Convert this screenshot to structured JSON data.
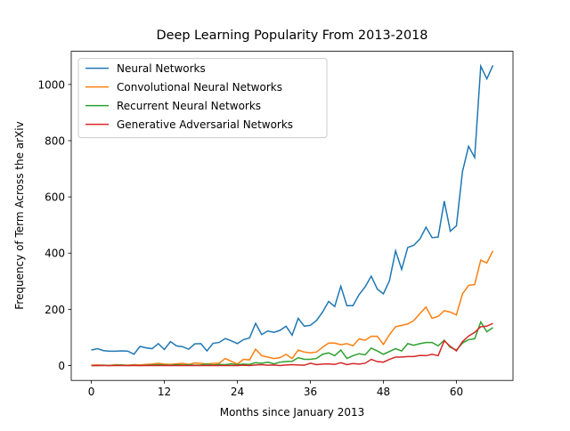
{
  "chart_data": {
    "type": "line",
    "title": "Deep Learning Popularity From 2013-2018",
    "xlabel": "Months since January 2013",
    "ylabel": "Frequency of Term Across the arXiv",
    "x": [
      0,
      1,
      2,
      3,
      4,
      5,
      6,
      7,
      8,
      9,
      10,
      11,
      12,
      13,
      14,
      15,
      16,
      17,
      18,
      19,
      20,
      21,
      22,
      23,
      24,
      25,
      26,
      27,
      28,
      29,
      30,
      31,
      32,
      33,
      34,
      35,
      36,
      37,
      38,
      39,
      40,
      41,
      42,
      43,
      44,
      45,
      46,
      47,
      48,
      49,
      50,
      51,
      52,
      53,
      54,
      55,
      56,
      57,
      58,
      59,
      60,
      61,
      62,
      63,
      64,
      65,
      66
    ],
    "series": [
      {
        "name": "Neural Networks",
        "color": "#1f77b4",
        "values": [
          55,
          60,
          53,
          51,
          51,
          52,
          51,
          40,
          68,
          63,
          60,
          78,
          57,
          85,
          70,
          67,
          58,
          77,
          78,
          52,
          79,
          82,
          96,
          88,
          78,
          92,
          98,
          150,
          110,
          123,
          118,
          125,
          140,
          108,
          168,
          140,
          143,
          160,
          190,
          228,
          210,
          282,
          213,
          213,
          252,
          280,
          318,
          272,
          255,
          302,
          408,
          342,
          420,
          428,
          450,
          492,
          455,
          457,
          585,
          478,
          497,
          690,
          780,
          740,
          1065,
          1020,
          1068
        ]
      },
      {
        "name": "Convolutional Neural Networks",
        "color": "#ff7f0e",
        "values": [
          1,
          2,
          1,
          0,
          3,
          2,
          1,
          3,
          2,
          4,
          5,
          8,
          5,
          4,
          6,
          8,
          4,
          9,
          8,
          5,
          8,
          8,
          25,
          15,
          5,
          22,
          20,
          58,
          35,
          30,
          25,
          28,
          40,
          25,
          55,
          48,
          45,
          48,
          65,
          80,
          80,
          74,
          78,
          70,
          95,
          90,
          104,
          104,
          75,
          110,
          138,
          143,
          148,
          160,
          185,
          208,
          168,
          175,
          195,
          190,
          180,
          255,
          285,
          288,
          375,
          365,
          408
        ]
      },
      {
        "name": "Recurrent Neural Networks",
        "color": "#2ca02c",
        "values": [
          0,
          0,
          1,
          0,
          1,
          2,
          0,
          1,
          0,
          1,
          2,
          3,
          2,
          1,
          3,
          2,
          3,
          1,
          2,
          5,
          2,
          4,
          3,
          6,
          3,
          5,
          4,
          10,
          8,
          12,
          6,
          12,
          14,
          15,
          28,
          22,
          22,
          25,
          40,
          45,
          35,
          55,
          25,
          35,
          42,
          38,
          62,
          52,
          40,
          50,
          60,
          52,
          78,
          72,
          78,
          82,
          82,
          70,
          90,
          65,
          55,
          80,
          92,
          95,
          155,
          120,
          135
        ]
      },
      {
        "name": "Generative Adversarial Networks",
        "color": "#d62728",
        "values": [
          0,
          0,
          0,
          0,
          0,
          0,
          0,
          0,
          0,
          0,
          0,
          0,
          0,
          0,
          0,
          0,
          0,
          0,
          0,
          0,
          0,
          0,
          0,
          0,
          0,
          1,
          0,
          2,
          3,
          1,
          2,
          0,
          2,
          3,
          2,
          1,
          8,
          3,
          5,
          6,
          4,
          10,
          3,
          7,
          5,
          8,
          22,
          14,
          12,
          22,
          30,
          30,
          32,
          32,
          36,
          35,
          40,
          35,
          88,
          68,
          52,
          85,
          105,
          118,
          138,
          140,
          150
        ]
      }
    ],
    "xlim": [
      -3.3,
      69.3
    ],
    "ylim": [
      -53,
      1118
    ],
    "xticks": [
      0,
      12,
      24,
      36,
      48,
      60
    ],
    "yticks": [
      0,
      200,
      400,
      600,
      800,
      1000
    ],
    "legend": "upper left"
  }
}
